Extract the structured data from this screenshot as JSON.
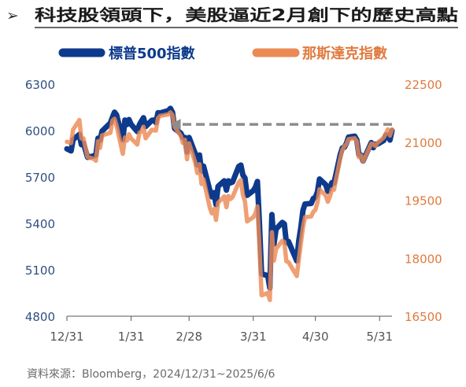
{
  "header": {
    "marker": "➢",
    "title": "科技股領頭下，美股逼近2月創下的歷史高點"
  },
  "footer": {
    "source": "資料來源：Bloomberg，2024/12/31~2025/6/6"
  },
  "colors": {
    "sp500": "#0d3a8c",
    "nasdaq": "#ec8a55",
    "left_axis_text": "#2f4f7f",
    "right_axis_text": "#e07a3e",
    "reference_line": "#8c8c8c",
    "title_rule": "#333333"
  },
  "chart_data": {
    "type": "line",
    "x_ticks": [
      "12/31",
      "1/31",
      "2/28",
      "3/31",
      "4/30",
      "5/31"
    ],
    "legend_position": "top",
    "grid": false,
    "y_left": {
      "ticks": [
        6300,
        6000,
        5700,
        5400,
        5100,
        4800
      ],
      "ylim": [
        4800,
        6300
      ]
    },
    "y_right": {
      "ticks": [
        22500,
        21000,
        19500,
        18000,
        16500
      ],
      "ylim": [
        16500,
        22500
      ]
    },
    "series": [
      {
        "name": "標普500指數",
        "axis": "left",
        "x": [
          "2024-12-31",
          "2025-01-02",
          "2025-01-03",
          "2025-01-06",
          "2025-01-07",
          "2025-01-08",
          "2025-01-10",
          "2025-01-13",
          "2025-01-14",
          "2025-01-15",
          "2025-01-16",
          "2025-01-17",
          "2025-01-21",
          "2025-01-22",
          "2025-01-23",
          "2025-01-24",
          "2025-01-27",
          "2025-01-28",
          "2025-01-29",
          "2025-01-30",
          "2025-01-31",
          "2025-02-03",
          "2025-02-04",
          "2025-02-05",
          "2025-02-06",
          "2025-02-07",
          "2025-02-10",
          "2025-02-11",
          "2025-02-12",
          "2025-02-13",
          "2025-02-14",
          "2025-02-18",
          "2025-02-19",
          "2025-02-20",
          "2025-02-21",
          "2025-02-24",
          "2025-02-25",
          "2025-02-26",
          "2025-02-27",
          "2025-02-28",
          "2025-03-03",
          "2025-03-04",
          "2025-03-05",
          "2025-03-06",
          "2025-03-07",
          "2025-03-10",
          "2025-03-11",
          "2025-03-12",
          "2025-03-13",
          "2025-03-14",
          "2025-03-17",
          "2025-03-18",
          "2025-03-19",
          "2025-03-20",
          "2025-03-21",
          "2025-03-24",
          "2025-03-25",
          "2025-03-26",
          "2025-03-27",
          "2025-03-28",
          "2025-03-31",
          "2025-04-01",
          "2025-04-02",
          "2025-04-03",
          "2025-04-04",
          "2025-04-07",
          "2025-04-08",
          "2025-04-09",
          "2025-04-10",
          "2025-04-11",
          "2025-04-14",
          "2025-04-15",
          "2025-04-16",
          "2025-04-17",
          "2025-04-21",
          "2025-04-22",
          "2025-04-23",
          "2025-04-24",
          "2025-04-25",
          "2025-04-28",
          "2025-04-29",
          "2025-04-30",
          "2025-05-01",
          "2025-05-02",
          "2025-05-05",
          "2025-05-06",
          "2025-05-07",
          "2025-05-08",
          "2025-05-09",
          "2025-05-12",
          "2025-05-13",
          "2025-05-14",
          "2025-05-15",
          "2025-05-16",
          "2025-05-19",
          "2025-05-20",
          "2025-05-21",
          "2025-05-22",
          "2025-05-23",
          "2025-05-27",
          "2025-05-28",
          "2025-05-29",
          "2025-05-30",
          "2025-06-02",
          "2025-06-03",
          "2025-06-04",
          "2025-06-05",
          "2025-06-06"
        ],
        "y": [
          5882,
          5869,
          5942,
          5975,
          5909,
          5918,
          5827,
          5837,
          5842,
          5950,
          5937,
          5997,
          6049,
          6086,
          6119,
          6101,
          5940,
          6068,
          6039,
          6071,
          6040,
          5994,
          6038,
          6061,
          6083,
          6026,
          6066,
          6068,
          6051,
          6115,
          6114,
          6129,
          6144,
          6117,
          6013,
          5983,
          5955,
          5956,
          5861,
          5955,
          5850,
          5778,
          5842,
          5739,
          5770,
          5615,
          5572,
          5599,
          5522,
          5639,
          5675,
          5615,
          5675,
          5662,
          5667,
          5768,
          5777,
          5712,
          5693,
          5581,
          5612,
          5633,
          5671,
          5397,
          5074,
          5062,
          4982,
          5457,
          5268,
          5363,
          5406,
          5397,
          5276,
          5283,
          5158,
          5288,
          5376,
          5485,
          5525,
          5529,
          5561,
          5569,
          5604,
          5687,
          5650,
          5607,
          5631,
          5664,
          5660,
          5844,
          5887,
          5892,
          5917,
          5958,
          5964,
          5940,
          5845,
          5842,
          5803,
          5922,
          5889,
          5912,
          5912,
          5936,
          5970,
          5971,
          5939,
          6000
        ]
      },
      {
        "name": "那斯達克指數",
        "axis": "right",
        "x": [
          "2024-12-31",
          "2025-01-02",
          "2025-01-03",
          "2025-01-06",
          "2025-01-07",
          "2025-01-08",
          "2025-01-10",
          "2025-01-13",
          "2025-01-14",
          "2025-01-15",
          "2025-01-16",
          "2025-01-17",
          "2025-01-21",
          "2025-01-22",
          "2025-01-23",
          "2025-01-24",
          "2025-01-27",
          "2025-01-28",
          "2025-01-29",
          "2025-01-30",
          "2025-01-31",
          "2025-02-03",
          "2025-02-04",
          "2025-02-05",
          "2025-02-06",
          "2025-02-07",
          "2025-02-10",
          "2025-02-11",
          "2025-02-12",
          "2025-02-13",
          "2025-02-14",
          "2025-02-18",
          "2025-02-19",
          "2025-02-20",
          "2025-02-21",
          "2025-02-24",
          "2025-02-25",
          "2025-02-26",
          "2025-02-27",
          "2025-02-28",
          "2025-03-03",
          "2025-03-04",
          "2025-03-05",
          "2025-03-06",
          "2025-03-07",
          "2025-03-10",
          "2025-03-11",
          "2025-03-12",
          "2025-03-13",
          "2025-03-14",
          "2025-03-17",
          "2025-03-18",
          "2025-03-19",
          "2025-03-20",
          "2025-03-21",
          "2025-03-24",
          "2025-03-25",
          "2025-03-26",
          "2025-03-27",
          "2025-03-28",
          "2025-03-31",
          "2025-04-01",
          "2025-04-02",
          "2025-04-03",
          "2025-04-04",
          "2025-04-07",
          "2025-04-08",
          "2025-04-09",
          "2025-04-10",
          "2025-04-11",
          "2025-04-14",
          "2025-04-15",
          "2025-04-16",
          "2025-04-17",
          "2025-04-21",
          "2025-04-22",
          "2025-04-23",
          "2025-04-24",
          "2025-04-25",
          "2025-04-28",
          "2025-04-29",
          "2025-04-30",
          "2025-05-01",
          "2025-05-02",
          "2025-05-05",
          "2025-05-06",
          "2025-05-07",
          "2025-05-08",
          "2025-05-09",
          "2025-05-12",
          "2025-05-13",
          "2025-05-14",
          "2025-05-15",
          "2025-05-16",
          "2025-05-19",
          "2025-05-20",
          "2025-05-21",
          "2025-05-22",
          "2025-05-23",
          "2025-05-27",
          "2025-05-28",
          "2025-05-29",
          "2025-05-30",
          "2025-06-02",
          "2025-06-03",
          "2025-06-04",
          "2025-06-05",
          "2025-06-06"
        ],
        "y": [
          21012,
          20976,
          21326,
          21572,
          21094,
          21097,
          20614,
          20567,
          20519,
          21026,
          20854,
          21175,
          21240,
          21556,
          21605,
          21428,
          20700,
          21120,
          21040,
          21205,
          21095,
          20940,
          21240,
          21280,
          21400,
          21100,
          21320,
          21310,
          21300,
          21620,
          21680,
          21720,
          21770,
          21700,
          21400,
          21160,
          20980,
          21060,
          20560,
          20970,
          20470,
          20200,
          20430,
          19920,
          20040,
          19310,
          19160,
          19270,
          18990,
          19430,
          19600,
          19320,
          19610,
          19530,
          19580,
          19960,
          20020,
          19640,
          19470,
          18950,
          19060,
          19150,
          19340,
          18300,
          17040,
          17100,
          16920,
          18670,
          17940,
          18240,
          18450,
          18420,
          17920,
          17900,
          17540,
          17970,
          18400,
          18800,
          19060,
          19080,
          19200,
          19250,
          19440,
          19780,
          19620,
          19460,
          19590,
          19780,
          19770,
          20580,
          20800,
          20890,
          20950,
          21080,
          21100,
          21020,
          20610,
          20660,
          20500,
          20960,
          20950,
          20900,
          20980,
          21120,
          21220,
          21330,
          21170,
          21330
        ]
      }
    ],
    "reference_line": {
      "style": "dashed-arrow",
      "axis": "left",
      "value": 6040,
      "from": "2025-06-06",
      "to": "2025-02-19"
    }
  }
}
